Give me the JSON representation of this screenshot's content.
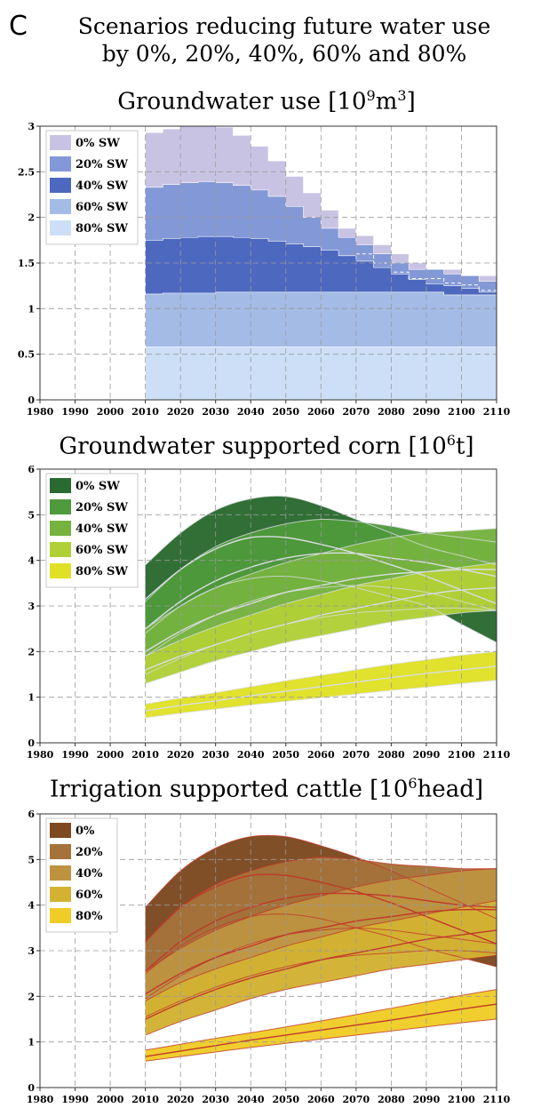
{
  "panel_label": "C",
  "heading_line1": "Scenarios reducing future water use",
  "heading_line2": "by 0%, 20%, 40%, 60% and 80%",
  "chart_data": [
    {
      "type": "area",
      "title_text": "Groundwater use [10",
      "title_sup": "9",
      "title_rest": "m",
      "title_sup2": "3",
      "title_end": "]",
      "xlim": [
        1980,
        2110
      ],
      "ylim": [
        0,
        3
      ],
      "x_ticks": [
        1980,
        1990,
        2000,
        2010,
        2020,
        2030,
        2040,
        2050,
        2060,
        2070,
        2080,
        2090,
        2100,
        2110
      ],
      "x_tick_labels": [
        "1980",
        "1990",
        "2000",
        "2010",
        "2020",
        "2030",
        "2040",
        "2050",
        "2060",
        "2070",
        "2080",
        "2090",
        "2100",
        "2110"
      ],
      "y_ticks": [
        0,
        0.5,
        1,
        1.5,
        2,
        2.5,
        3
      ],
      "y_tick_labels": [
        "0",
        "0.5",
        "1",
        "1.5",
        "2",
        "2.5",
        "3"
      ],
      "grid": true,
      "legend_position": "top-left",
      "step_x": [
        2010,
        2015,
        2020,
        2025,
        2030,
        2035,
        2040,
        2045,
        2050,
        2055,
        2060,
        2065,
        2070,
        2075,
        2080,
        2085,
        2090,
        2095,
        2100,
        2105,
        2110
      ],
      "series": [
        {
          "name": "0% SW",
          "color": "#c9c3e3",
          "values": [
            2.93,
            2.97,
            3.0,
            3.0,
            2.99,
            2.9,
            2.78,
            2.62,
            2.45,
            2.27,
            2.08,
            1.88,
            1.8,
            1.7,
            1.6,
            1.5,
            1.43,
            1.43,
            1.36,
            1.36
          ]
        },
        {
          "name": "20% SW",
          "color": "#8398d6",
          "values": [
            2.33,
            2.36,
            2.38,
            2.39,
            2.38,
            2.35,
            2.3,
            2.23,
            2.12,
            2.0,
            1.88,
            1.78,
            1.7,
            1.6,
            1.5,
            1.43,
            1.43,
            1.38,
            1.36,
            1.3
          ]
        },
        {
          "name": "40% SW",
          "color": "#4d68bf",
          "values": [
            1.75,
            1.77,
            1.78,
            1.79,
            1.79,
            1.78,
            1.77,
            1.74,
            1.71,
            1.68,
            1.64,
            1.58,
            1.52,
            1.45,
            1.38,
            1.32,
            1.27,
            1.25,
            1.22,
            1.18
          ]
        },
        {
          "name": "60% SW",
          "color": "#a4bbe6",
          "values": [
            1.16,
            1.17,
            1.17,
            1.17,
            1.18,
            1.18,
            1.18,
            1.18,
            1.18,
            1.18,
            1.18,
            1.18,
            1.18,
            1.18,
            1.18,
            1.18,
            1.18,
            1.15,
            1.15,
            1.15
          ]
        },
        {
          "name": "80% SW",
          "color": "#cddff6",
          "values": [
            0.58,
            0.58,
            0.58,
            0.58,
            0.58,
            0.58,
            0.58,
            0.58,
            0.58,
            0.58,
            0.58,
            0.58,
            0.58,
            0.58,
            0.58,
            0.58,
            0.58,
            0.58,
            0.58,
            0.58
          ]
        }
      ]
    },
    {
      "type": "area",
      "title_text": "Groundwater supported corn [10",
      "title_sup": "6",
      "title_rest": "t",
      "title_sup2": "",
      "title_end": "]",
      "xlim": [
        1980,
        2110
      ],
      "ylim": [
        0,
        6
      ],
      "x_ticks": [
        1980,
        1990,
        2000,
        2010,
        2020,
        2030,
        2040,
        2050,
        2060,
        2070,
        2080,
        2090,
        2100,
        2110
      ],
      "x_tick_labels": [
        "1980",
        "1990",
        "2000",
        "2010",
        "2020",
        "2030",
        "2040",
        "2050",
        "2060",
        "2070",
        "2080",
        "2090",
        "2100",
        "2110"
      ],
      "y_ticks": [
        0,
        1,
        2,
        3,
        4,
        5,
        6
      ],
      "y_tick_labels": [
        "0",
        "1",
        "2",
        "3",
        "4",
        "5",
        "6"
      ],
      "grid": true,
      "legend_position": "top-left",
      "x": [
        2010,
        2020,
        2030,
        2040,
        2050,
        2060,
        2070,
        2080,
        2090,
        2100,
        2110
      ],
      "series": [
        {
          "name": "0% SW",
          "color": "#2a6a30",
          "upper": [
            3.9,
            4.6,
            5.1,
            5.35,
            5.4,
            5.2,
            4.9,
            4.6,
            4.3,
            4.1,
            3.9
          ],
          "lower": [
            2.4,
            3.0,
            3.4,
            3.6,
            3.65,
            3.55,
            3.4,
            3.2,
            3.0,
            2.6,
            2.2
          ],
          "mid": [
            3.15,
            3.8,
            4.25,
            4.5,
            4.5,
            4.35,
            4.15,
            3.9,
            3.65,
            3.35,
            3.05
          ]
        },
        {
          "name": "20% SW",
          "color": "#4e9a3c",
          "upper": [
            3.1,
            3.8,
            4.3,
            4.6,
            4.8,
            4.9,
            4.85,
            4.75,
            4.6,
            4.5,
            4.4
          ],
          "lower": [
            1.9,
            2.4,
            2.8,
            3.1,
            3.3,
            3.4,
            3.45,
            3.4,
            3.3,
            3.1,
            2.9
          ],
          "mid": [
            2.5,
            3.1,
            3.55,
            3.85,
            4.05,
            4.15,
            4.15,
            4.05,
            3.95,
            3.8,
            3.65
          ]
        },
        {
          "name": "40% SW",
          "color": "#75b33e",
          "upper": [
            2.5,
            3.0,
            3.4,
            3.7,
            3.95,
            4.15,
            4.35,
            4.5,
            4.6,
            4.65,
            4.7
          ],
          "lower": [
            1.5,
            1.85,
            2.15,
            2.4,
            2.6,
            2.75,
            2.85,
            2.9,
            2.95,
            2.95,
            2.9
          ],
          "mid": [
            2.0,
            2.45,
            2.8,
            3.05,
            3.3,
            3.45,
            3.6,
            3.7,
            3.75,
            3.8,
            3.8
          ]
        },
        {
          "name": "60% SW",
          "color": "#afd036",
          "upper": [
            1.9,
            2.25,
            2.55,
            2.8,
            3.05,
            3.25,
            3.45,
            3.6,
            3.75,
            3.85,
            3.95
          ],
          "lower": [
            1.3,
            1.55,
            1.8,
            2.0,
            2.2,
            2.35,
            2.5,
            2.65,
            2.75,
            2.85,
            2.9
          ],
          "mid": [
            1.6,
            1.9,
            2.15,
            2.4,
            2.6,
            2.8,
            2.95,
            3.1,
            3.25,
            3.35,
            3.4
          ]
        },
        {
          "name": "80% SW",
          "color": "#e0e126",
          "upper": [
            0.85,
            0.98,
            1.1,
            1.23,
            1.36,
            1.48,
            1.6,
            1.72,
            1.82,
            1.92,
            2.0
          ],
          "lower": [
            0.55,
            0.65,
            0.74,
            0.83,
            0.91,
            0.99,
            1.07,
            1.15,
            1.22,
            1.3,
            1.37
          ],
          "mid": [
            0.7,
            0.82,
            0.92,
            1.03,
            1.13,
            1.23,
            1.33,
            1.43,
            1.52,
            1.6,
            1.68
          ]
        }
      ]
    },
    {
      "type": "area",
      "title_text": "Irrigation supported cattle [10",
      "title_sup": "6",
      "title_rest": "head",
      "title_sup2": "",
      "title_end": "]",
      "xlim": [
        1980,
        2110
      ],
      "ylim": [
        0,
        6
      ],
      "x_ticks": [
        1980,
        1990,
        2000,
        2010,
        2020,
        2030,
        2040,
        2050,
        2060,
        2070,
        2080,
        2090,
        2100,
        2110
      ],
      "x_tick_labels": [
        "1980",
        "1990",
        "2000",
        "2010",
        "2020",
        "2030",
        "2040",
        "2050",
        "2060",
        "2070",
        "2080",
        "2090",
        "2100",
        "2110"
      ],
      "y_ticks": [
        0,
        1,
        2,
        3,
        4,
        5,
        6
      ],
      "y_tick_labels": [
        "0",
        "1",
        "2",
        "3",
        "4",
        "5",
        "6"
      ],
      "grid": true,
      "legend_position": "top-left",
      "x": [
        2010,
        2020,
        2030,
        2040,
        2050,
        2060,
        2070,
        2080,
        2090,
        2100,
        2110
      ],
      "series": [
        {
          "name": "0%",
          "color": "#7d4920",
          "upper": [
            3.95,
            4.75,
            5.25,
            5.5,
            5.5,
            5.3,
            5.05,
            4.75,
            4.4,
            4.05,
            3.7
          ],
          "lower": [
            2.5,
            3.1,
            3.5,
            3.75,
            3.8,
            3.7,
            3.5,
            3.3,
            3.05,
            2.85,
            2.65
          ],
          "mid": [
            3.2,
            3.95,
            4.4,
            4.65,
            4.65,
            4.5,
            4.3,
            4.05,
            3.75,
            3.45,
            3.15
          ]
        },
        {
          "name": "20%",
          "color": "#a4733a",
          "upper": [
            3.2,
            3.95,
            4.45,
            4.75,
            4.95,
            5.05,
            5.0,
            4.9,
            4.85,
            4.8,
            4.8
          ],
          "lower": [
            1.95,
            2.45,
            2.85,
            3.15,
            3.35,
            3.45,
            3.5,
            3.45,
            3.35,
            3.25,
            3.15
          ],
          "mid": [
            2.55,
            3.2,
            3.65,
            3.95,
            4.15,
            4.25,
            4.25,
            4.2,
            4.1,
            4.0,
            3.95
          ]
        },
        {
          "name": "40%",
          "color": "#bd9340",
          "upper": [
            2.55,
            3.05,
            3.45,
            3.75,
            4.0,
            4.2,
            4.4,
            4.55,
            4.65,
            4.75,
            4.8
          ],
          "lower": [
            1.55,
            1.9,
            2.2,
            2.45,
            2.65,
            2.8,
            2.9,
            2.95,
            3.0,
            3.0,
            2.95
          ],
          "mid": [
            2.05,
            2.5,
            2.85,
            3.1,
            3.35,
            3.5,
            3.65,
            3.75,
            3.85,
            3.9,
            3.9
          ]
        },
        {
          "name": "60%",
          "color": "#d3b232",
          "upper": [
            1.9,
            2.3,
            2.6,
            2.85,
            3.1,
            3.3,
            3.5,
            3.65,
            3.8,
            3.95,
            4.1
          ],
          "lower": [
            1.15,
            1.45,
            1.7,
            1.95,
            2.15,
            2.3,
            2.45,
            2.6,
            2.7,
            2.8,
            2.9
          ],
          "mid": [
            1.5,
            1.85,
            2.15,
            2.4,
            2.6,
            2.8,
            2.95,
            3.1,
            3.25,
            3.35,
            3.45
          ]
        },
        {
          "name": "80%",
          "color": "#efcc27",
          "upper": [
            0.82,
            0.95,
            1.08,
            1.2,
            1.33,
            1.46,
            1.6,
            1.74,
            1.88,
            2.02,
            2.15
          ],
          "lower": [
            0.58,
            0.68,
            0.78,
            0.88,
            0.97,
            1.06,
            1.15,
            1.24,
            1.33,
            1.42,
            1.5
          ],
          "mid": [
            0.68,
            0.8,
            0.92,
            1.04,
            1.15,
            1.26,
            1.37,
            1.48,
            1.6,
            1.72,
            1.83
          ]
        }
      ]
    }
  ]
}
